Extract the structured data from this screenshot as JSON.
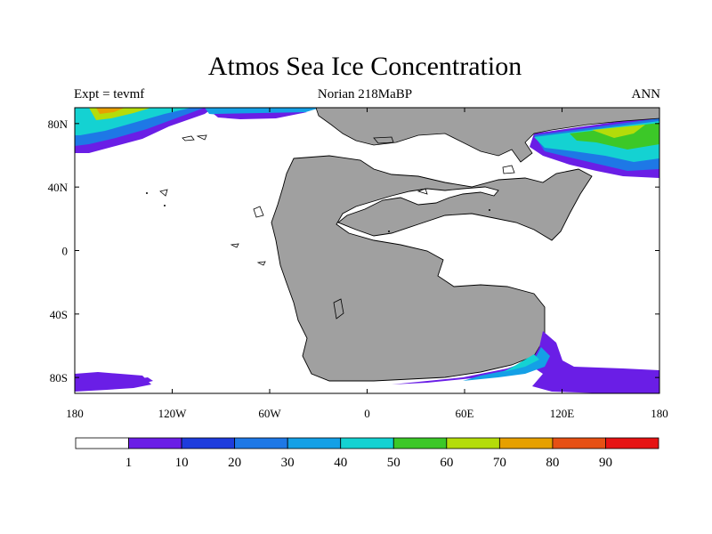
{
  "title": "Atmos Sea Ice Concentration",
  "subtitle_left": "Expt = tevmf",
  "subtitle_center": "Norian 218MaBP",
  "subtitle_right": "ANN",
  "map": {
    "lon_range": [
      -180,
      180
    ],
    "lat_range": [
      -90,
      90
    ],
    "lat_ticks": [
      {
        "value": 80,
        "label": "80N"
      },
      {
        "value": 40,
        "label": "40N"
      },
      {
        "value": 0,
        "label": "0"
      },
      {
        "value": -40,
        "label": "40S"
      },
      {
        "value": -80,
        "label": "80S"
      }
    ],
    "lon_ticks": [
      {
        "value": -180,
        "label": "180"
      },
      {
        "value": -120,
        "label": "120W"
      },
      {
        "value": -60,
        "label": "60W"
      },
      {
        "value": 0,
        "label": "0"
      },
      {
        "value": 60,
        "label": "60E"
      },
      {
        "value": 120,
        "label": "120E"
      },
      {
        "value": 180,
        "label": "180"
      }
    ],
    "land_color": "#a0a0a0",
    "ocean_color": "#ffffff"
  },
  "colorbar": {
    "labels": [
      "1",
      "10",
      "20",
      "30",
      "40",
      "50",
      "60",
      "70",
      "80",
      "90"
    ],
    "colors": [
      "#ffffff",
      "#6a1ee6",
      "#1e3cdc",
      "#1e78e6",
      "#14a0e6",
      "#14d2d2",
      "#3cc828",
      "#b4dc0a",
      "#e6a000",
      "#e65014",
      "#e61414"
    ]
  }
}
